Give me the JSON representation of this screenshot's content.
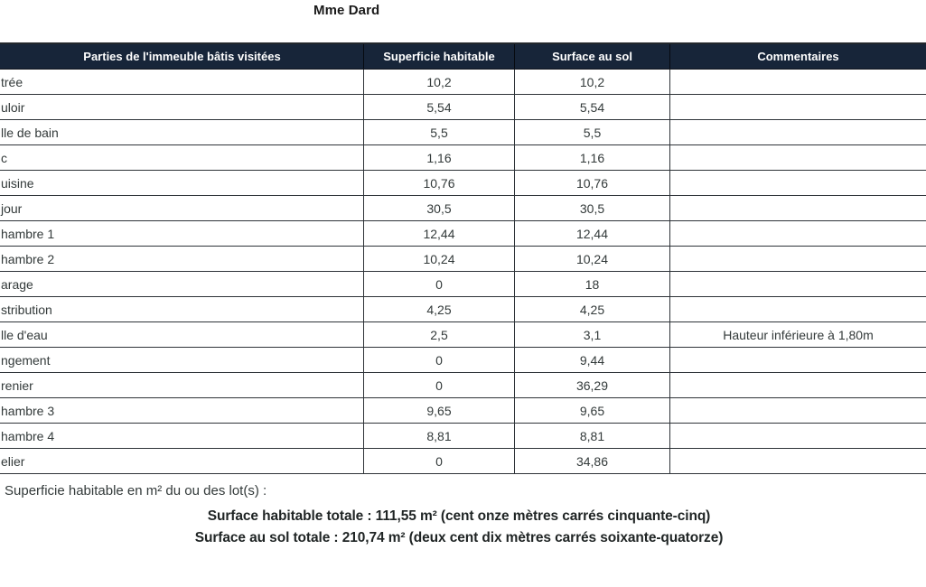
{
  "title": "Mme Dard",
  "table": {
    "headers": {
      "parts": "Parties de l'immeuble bâtis visitées",
      "superficie": "Superficie habitable",
      "surface_sol": "Surface au sol",
      "commentaires": "Commentaires"
    },
    "rows": [
      {
        "name": "trée",
        "superficie": "10,2",
        "surface_sol": "10,2",
        "comment": ""
      },
      {
        "name": "uloir",
        "superficie": "5,54",
        "surface_sol": "5,54",
        "comment": ""
      },
      {
        "name": "lle de bain",
        "superficie": "5,5",
        "surface_sol": "5,5",
        "comment": ""
      },
      {
        "name": "c",
        "superficie": "1,16",
        "surface_sol": "1,16",
        "comment": ""
      },
      {
        "name": "uisine",
        "superficie": "10,76",
        "surface_sol": "10,76",
        "comment": ""
      },
      {
        "name": "jour",
        "superficie": "30,5",
        "surface_sol": "30,5",
        "comment": ""
      },
      {
        "name": "hambre 1",
        "superficie": "12,44",
        "surface_sol": "12,44",
        "comment": ""
      },
      {
        "name": "hambre 2",
        "superficie": "10,24",
        "surface_sol": "10,24",
        "comment": ""
      },
      {
        "name": "arage",
        "superficie": "0",
        "surface_sol": "18",
        "comment": ""
      },
      {
        "name": "stribution",
        "superficie": "4,25",
        "surface_sol": "4,25",
        "comment": ""
      },
      {
        "name": "lle d'eau",
        "superficie": "2,5",
        "surface_sol": "3,1",
        "comment": "Hauteur inférieure à 1,80m"
      },
      {
        "name": "ngement",
        "superficie": "0",
        "surface_sol": "9,44",
        "comment": ""
      },
      {
        "name": "renier",
        "superficie": "0",
        "surface_sol": "36,29",
        "comment": ""
      },
      {
        "name": "hambre 3",
        "superficie": "9,65",
        "surface_sol": "9,65",
        "comment": ""
      },
      {
        "name": "hambre 4",
        "superficie": "8,81",
        "surface_sol": "8,81",
        "comment": ""
      },
      {
        "name": "elier",
        "superficie": "0",
        "surface_sol": "34,86",
        "comment": ""
      }
    ]
  },
  "footer": {
    "label_line": "Superficie habitable en m² du ou des lot(s) :",
    "total_habitable": "Surface habitable totale : 111,55 m² (cent onze mètres carrés cinquante-cinq)",
    "total_sol": "Surface au sol totale : 210,74 m² (deux cent dix mètres carrés soixante-quatorze)"
  },
  "colors": {
    "header_bg": "#172539",
    "header_text": "#ffffff",
    "border": "#2e3338",
    "body_text": "#333a3a"
  }
}
